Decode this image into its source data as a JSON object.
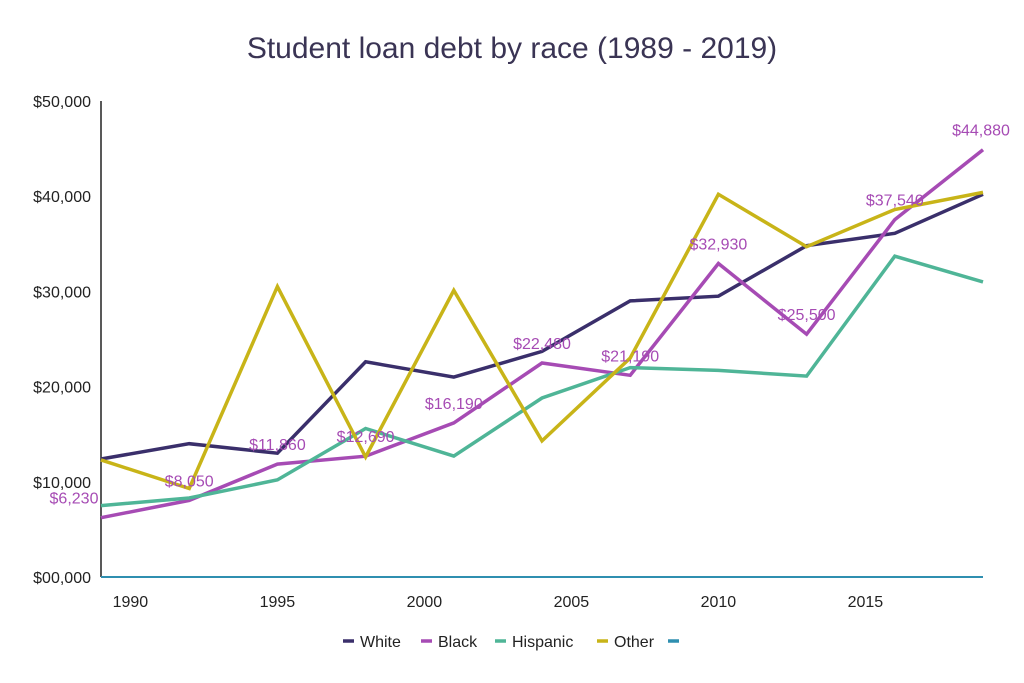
{
  "chart_data": {
    "type": "line",
    "title": "Student loan debt by race (1989 - 2019)",
    "xlabel": "",
    "ylabel": "",
    "x": [
      1989,
      1992,
      1995,
      1998,
      2001,
      2004,
      2007,
      2010,
      2013,
      2016,
      2019
    ],
    "xlim": [
      1989,
      2019
    ],
    "ylim": [
      0,
      50000
    ],
    "x_ticks": [
      1990,
      1995,
      2000,
      2005,
      2010,
      2015
    ],
    "x_tick_labels": [
      "1990",
      "1995",
      "2000",
      "2005",
      "2010",
      "2015"
    ],
    "y_ticks": [
      0,
      10000,
      20000,
      30000,
      40000,
      50000
    ],
    "y_tick_labels": [
      "$00,000",
      "$10,000",
      "$20,000",
      "$30,000",
      "$40,000",
      "$50,000"
    ],
    "grid": false,
    "legend_position": "bottom",
    "series": [
      {
        "name": "White",
        "color": "#3a2f6b",
        "values": [
          12400,
          14000,
          13000,
          22600,
          21000,
          23700,
          29000,
          29500,
          34800,
          36100,
          40200
        ]
      },
      {
        "name": "Black",
        "color": "#a64bb4",
        "values": [
          6230,
          8050,
          11860,
          12690,
          16190,
          22480,
          21190,
          32930,
          25500,
          37540,
          44880
        ],
        "labels": [
          "$6,230",
          "$8,050",
          "$11,860",
          "$12,690",
          "$16,190",
          "$22,480",
          "$21,190",
          "$32,930",
          "$25,500",
          "$37,540",
          "$44,880"
        ]
      },
      {
        "name": "Hispanic",
        "color": "#4fb597",
        "values": [
          7500,
          8300,
          10200,
          15600,
          12700,
          18800,
          22000,
          21700,
          21100,
          33700,
          31000
        ]
      },
      {
        "name": "Other",
        "color": "#c8b418",
        "values": [
          12300,
          9300,
          30500,
          12600,
          30100,
          14300,
          23000,
          40200,
          34700,
          38600,
          40400
        ]
      }
    ],
    "legend": [
      {
        "name": "White",
        "color": "#3a2f6b"
      },
      {
        "name": "Black",
        "color": "#a64bb4"
      },
      {
        "name": "Hispanic",
        "color": "#4fb597"
      },
      {
        "name": "Other",
        "color": "#c8b418"
      },
      {
        "name": "",
        "color": "#2f8fb0"
      }
    ],
    "x_axis_color": "#2f8fb0"
  }
}
